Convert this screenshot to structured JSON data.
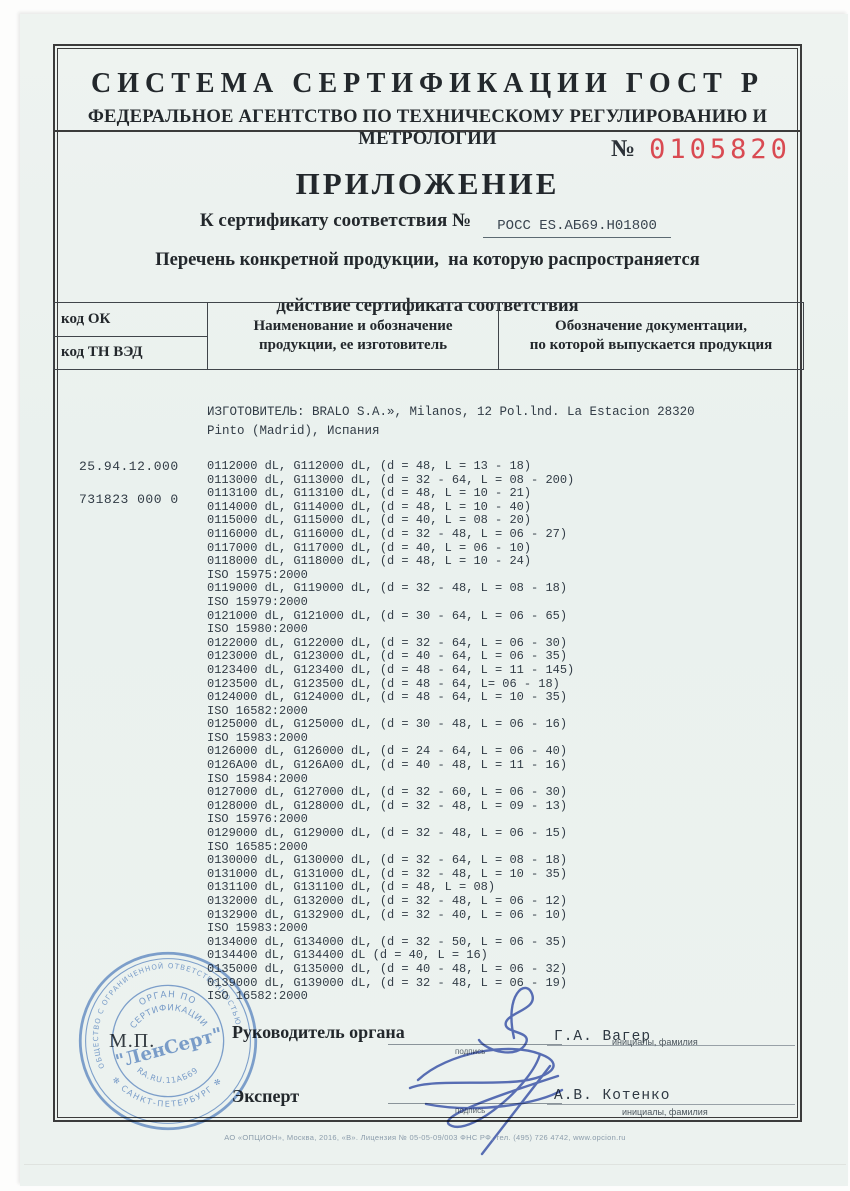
{
  "header": {
    "system_title": "СИСТЕМА СЕРТИФИКАЦИИ ГОСТ Р",
    "agency_title": "ФЕДЕРАЛЬНОЕ АГЕНТСТВО ПО ТЕХНИЧЕСКОМУ РЕГУЛИРОВАНИЮ И МЕТРОЛОГИИ"
  },
  "form_number": {
    "label": "№",
    "value": "0105820",
    "color": "#d94a52"
  },
  "appendix": {
    "title": "ПРИЛОЖЕНИЕ",
    "cert_line_label": "К сертификату соответствия №",
    "cert_number": "РОСС ES.АБ69.Н01800",
    "subtitle_line1": "Перечень конкретной продукции,  на которую распространяется",
    "subtitle_line2": "действие сертификата соответствия"
  },
  "table": {
    "col1_row1": "код ОК",
    "col1_row2": "код ТН ВЭД",
    "col2_line1": "Наименование и обозначение",
    "col2_line2": "продукции, ее изготовитель",
    "col3_line1": "Обозначение документации,",
    "col3_line2": "по которой выпускается продукция",
    "code_ok": "25.94.12.000",
    "code_tn_ved": "731823 000 0"
  },
  "manufacturer": {
    "line1": "ИЗГОТОВИТЕЛЬ: BRALO S.A.», Milanos, 12 Pol.lnd. La Estacion 28320",
    "line2": "Pinto (Madrid), Испания"
  },
  "products": [
    "0112000 dL, G112000 dL, (d = 48, L = 13 - 18)",
    "0113000 dL, G113000 dL, (d = 32 - 64, L = 08 - 200)",
    "0113100 dL, G113100 dL, (d = 48, L = 10 - 21)",
    "0114000 dL, G114000 dL, (d = 48, L = 10 - 40)",
    "0115000 dL, G115000 dL, (d = 40, L = 08 - 20)",
    "0116000 dL, G116000 dL, (d = 32 - 48, L = 06 - 27)",
    "0117000 dL, G117000 dL, (d = 40, L = 06 - 10)",
    "0118000 dL, G118000 dL, (d = 48, L = 10 - 24)",
    "ISO 15975:2000",
    "0119000 dL, G119000 dL, (d = 32 - 48, L = 08 - 18)",
    "ISO 15979:2000",
    "0121000 dL, G121000 dL, (d = 30 - 64, L = 06 - 65)",
    "ISO 15980:2000",
    "0122000 dL, G122000 dL, (d = 32 - 64, L = 06 - 30)",
    "0123000 dL, G123000 dL, (d = 40 - 64, L = 06 - 35)",
    "0123400 dL, G123400 dL, (d = 48 - 64, L = 11 - 145)",
    "0123500 dL, G123500 dL, (d = 48 - 64, L= 06 - 18)",
    "0124000 dL, G124000 dL, (d = 48 - 64, L = 10 - 35)",
    "ISO 16582:2000",
    "0125000 dL, G125000 dL, (d = 30 - 48, L = 06 - 16)",
    "ISO 15983:2000",
    "0126000 dL, G126000 dL, (d = 24 - 64, L = 06 - 40)",
    "0126A00 dL, G126A00 dL, (d = 40 - 48, L = 11 - 16)",
    "ISO 15984:2000",
    "0127000 dL, G127000 dL, (d = 32 - 60, L = 06 - 30)",
    "0128000 dL, G128000 dL, (d = 32 - 48, L = 09 - 13)",
    "ISO 15976:2000",
    "0129000 dL, G129000 dL, (d = 32 - 48, L = 06 - 15)",
    "ISO 16585:2000",
    "0130000 dL, G130000 dL, (d = 32 - 64, L = 08 - 18)",
    "0131000 dL, G131000 dL, (d = 32 - 48, L = 10 - 35)",
    "0131100 dL, G131100 dL, (d = 48, L = 08)",
    "0132000 dL, G132000 dL, (d = 32 - 48, L = 06 - 12)",
    "0132900 dL, G132900 dL, (d = 32 - 40, L = 06 - 10)",
    "ISO 15983:2000",
    "0134000 dL, G134000 dL, (d = 32 - 50, L = 06 - 35)",
    "0134400 dL, G134400 dL (d = 40, L = 16)",
    "0135000 dL, G135000 dL, (d = 40 - 48, L = 06 - 32)",
    "0139000 dL, G139000 dL, (d = 32 - 48, L = 06 - 19)",
    "ISO 16582:2000"
  ],
  "signatures": {
    "row1_role": "Руководитель органа",
    "row1_name": "Г.А. Вагер",
    "row2_role": "Эксперт",
    "row2_name": "А.В. Котенко",
    "sign_label": "подпись",
    "initials_label": "инициалы, фамилия",
    "stamp_place_label": "М.П."
  },
  "stamp": {
    "ring_top": "ОБЩЕСТВО С ОГРАНИЧЕННОЙ ОТВЕТСТВЕННОСТЬЮ",
    "ring_bottom": "✻ САНКТ-ПЕТЕРБУРГ ✻",
    "inner_top1": "ОРГАН ПО",
    "inner_top2": "СЕРТИФИКАЦИИ",
    "center": "\"ЛенСерт\"",
    "inner_bottom": "RA.RU.11АБ69",
    "color": "#4d7ec5"
  },
  "footer": "АО «ОПЦИОН», Москва, 2016, «В».   Лицензия № 05-05-09/003 ФНС РФ, тел. (495) 726 4742, www.opcion.ru"
}
